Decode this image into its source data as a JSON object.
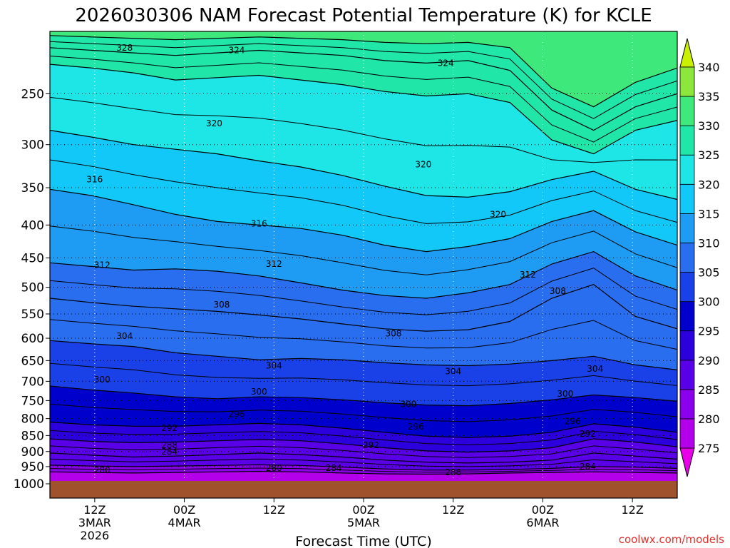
{
  "chart_data": {
    "type": "contour",
    "title": "2026030306 NAM Forecast Potential Temperature (K) for KCLE",
    "xlabel": "Forecast Time (UTC)",
    "ylabel": "",
    "credit": "coolwx.com/models",
    "x_ticks": [
      {
        "hours": 6,
        "lines": [
          "12Z",
          "3MAR",
          "2026"
        ]
      },
      {
        "hours": 18,
        "lines": [
          "00Z",
          "4MAR"
        ]
      },
      {
        "hours": 30,
        "lines": [
          "12Z"
        ]
      },
      {
        "hours": 42,
        "lines": [
          "00Z",
          "5MAR"
        ]
      },
      {
        "hours": 54,
        "lines": [
          "12Z"
        ]
      },
      {
        "hours": 66,
        "lines": [
          "00Z",
          "6MAR"
        ]
      },
      {
        "hours": 78,
        "lines": [
          "12Z"
        ]
      }
    ],
    "x_range_hours": [
      0,
      84
    ],
    "y_axis": {
      "type": "log-pressure",
      "unit": "hPa",
      "range": [
        1000,
        200
      ],
      "inverted": true
    },
    "y_ticks": [
      250,
      300,
      350,
      400,
      450,
      500,
      550,
      600,
      650,
      700,
      750,
      800,
      850,
      900,
      950,
      1000
    ],
    "grid": {
      "dotted": true
    },
    "colorbar": {
      "levels": [
        275,
        280,
        285,
        290,
        295,
        300,
        305,
        310,
        315,
        320,
        325,
        330,
        335,
        340
      ],
      "colors": [
        "#e800e8",
        "#b400ea",
        "#8a00ea",
        "#5a00e6",
        "#2c00dc",
        "#0000cc",
        "#1a40e8",
        "#2a6ef0",
        "#1e9cf4",
        "#12c8f8",
        "#1ee6e6",
        "#20e6a8",
        "#3ee87a",
        "#8ce63c",
        "#c8f000"
      ]
    },
    "ground_color": "#a0522d",
    "series": [
      {
        "theta": 280,
        "p": [
          968,
          970,
          972,
          970,
          968,
          966,
          968,
          972,
          975,
          976,
          975,
          972,
          970,
          968,
          970,
          972
        ]
      },
      {
        "theta": 284,
        "p": [
          945,
          948,
          950,
          948,
          946,
          944,
          946,
          952,
          958,
          962,
          962,
          960,
          956,
          950,
          952,
          956
        ]
      },
      {
        "theta": 288,
        "p": [
          905,
          912,
          918,
          915,
          910,
          905,
          910,
          918,
          928,
          935,
          938,
          935,
          928,
          905,
          915,
          925
        ]
      },
      {
        "theta": 292,
        "p": [
          860,
          868,
          872,
          870,
          866,
          862,
          866,
          876,
          888,
          898,
          902,
          898,
          888,
          860,
          870,
          885
        ]
      },
      {
        "theta": 296,
        "p": [
          810,
          818,
          822,
          822,
          818,
          814,
          818,
          828,
          840,
          852,
          856,
          852,
          840,
          815,
          825,
          840
        ]
      },
      {
        "theta": 300,
        "p": [
          712,
          722,
          730,
          740,
          745,
          740,
          742,
          748,
          756,
          762,
          764,
          758,
          748,
          735,
          742,
          752
        ]
      },
      {
        "theta": 304,
        "p": [
          605,
          612,
          618,
          632,
          640,
          648,
          645,
          648,
          655,
          660,
          662,
          658,
          650,
          640,
          660,
          672
        ]
      },
      {
        "theta": 308,
        "p": [
          520,
          528,
          535,
          540,
          545,
          552,
          560,
          570,
          580,
          585,
          582,
          565,
          520,
          495,
          555,
          580
        ]
      },
      {
        "theta": 312,
        "p": [
          458,
          464,
          470,
          468,
          472,
          480,
          492,
          505,
          515,
          520,
          510,
          495,
          460,
          440,
          480,
          505
        ]
      },
      {
        "theta": 316,
        "p": [
          352,
          360,
          372,
          385,
          395,
          400,
          405,
          415,
          430,
          440,
          432,
          420,
          395,
          380,
          410,
          430
        ]
      },
      {
        "theta": 320,
        "p": [
          285,
          292,
          300,
          305,
          310,
          318,
          325,
          335,
          348,
          360,
          362,
          355,
          340,
          330,
          352,
          365
        ]
      },
      {
        "theta": 324,
        "p": [
          225,
          228,
          232,
          238,
          236,
          234,
          238,
          242,
          248,
          252,
          250,
          258,
          295,
          310,
          285,
          275
        ]
      },
      {
        "theta": 328,
        "p": [
          212,
          214,
          216,
          218,
          216,
          214,
          216,
          218,
          222,
          224,
          222,
          230,
          265,
          285,
          262,
          250
        ]
      },
      {
        "theta": 332,
        "p": [
          203,
          204,
          205,
          206,
          205,
          204,
          205,
          206,
          208,
          209,
          208,
          212,
          245,
          262,
          240,
          228
        ]
      }
    ],
    "series_x_hours": [
      0,
      5.6,
      11.2,
      16.8,
      22.4,
      28,
      33.6,
      39.2,
      44.8,
      50.4,
      56,
      61.6,
      67.2,
      72.8,
      78.4,
      84
    ],
    "contour_labels": [
      {
        "text": "328",
        "hours": 10,
        "p": 212
      },
      {
        "text": "324",
        "hours": 25,
        "p": 214
      },
      {
        "text": "324",
        "hours": 53,
        "p": 224
      },
      {
        "text": "320",
        "hours": 22,
        "p": 278
      },
      {
        "text": "320",
        "hours": 50,
        "p": 322
      },
      {
        "text": "320",
        "hours": 60,
        "p": 385
      },
      {
        "text": "316",
        "hours": 6,
        "p": 340
      },
      {
        "text": "316",
        "hours": 28,
        "p": 398
      },
      {
        "text": "312",
        "hours": 7,
        "p": 462
      },
      {
        "text": "312",
        "hours": 30,
        "p": 460
      },
      {
        "text": "312",
        "hours": 64,
        "p": 478
      },
      {
        "text": "308",
        "hours": 23,
        "p": 532
      },
      {
        "text": "308",
        "hours": 46,
        "p": 590
      },
      {
        "text": "308",
        "hours": 68,
        "p": 507
      },
      {
        "text": "304",
        "hours": 10,
        "p": 595
      },
      {
        "text": "304",
        "hours": 30,
        "p": 662
      },
      {
        "text": "304",
        "hours": 54,
        "p": 676
      },
      {
        "text": "304",
        "hours": 73,
        "p": 670
      },
      {
        "text": "300",
        "hours": 7,
        "p": 696
      },
      {
        "text": "300",
        "hours": 28,
        "p": 727
      },
      {
        "text": "300",
        "hours": 48,
        "p": 760
      },
      {
        "text": "300",
        "hours": 69,
        "p": 732
      },
      {
        "text": "296",
        "hours": 25,
        "p": 788
      },
      {
        "text": "296",
        "hours": 49,
        "p": 824
      },
      {
        "text": "296",
        "hours": 70,
        "p": 808
      },
      {
        "text": "292",
        "hours": 16,
        "p": 828
      },
      {
        "text": "292",
        "hours": 43,
        "p": 880
      },
      {
        "text": "292",
        "hours": 72,
        "p": 845
      },
      {
        "text": "288",
        "hours": 16,
        "p": 880
      },
      {
        "text": "288",
        "hours": 54,
        "p": 970
      },
      {
        "text": "284",
        "hours": 16,
        "p": 900
      },
      {
        "text": "284",
        "hours": 38,
        "p": 955
      },
      {
        "text": "284",
        "hours": 72,
        "p": 950
      },
      {
        "text": "280",
        "hours": 7,
        "p": 962
      },
      {
        "text": "280",
        "hours": 30,
        "p": 955
      }
    ]
  }
}
